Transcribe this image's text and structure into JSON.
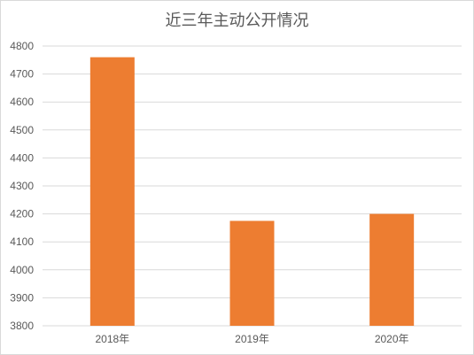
{
  "chart_data": {
    "type": "bar",
    "title": "近三年主动公开情况",
    "categories": [
      "2018年",
      "2019年",
      "2020年"
    ],
    "values": [
      4760,
      4175,
      4200
    ],
    "ylim": [
      3800,
      4800
    ],
    "yticks": [
      3800,
      3900,
      4000,
      4100,
      4200,
      4300,
      4400,
      4500,
      4600,
      4700,
      4800
    ],
    "grid": true,
    "legend": "none",
    "bar_color": "#ED7D31",
    "grid_color": "#D9D9D9"
  }
}
